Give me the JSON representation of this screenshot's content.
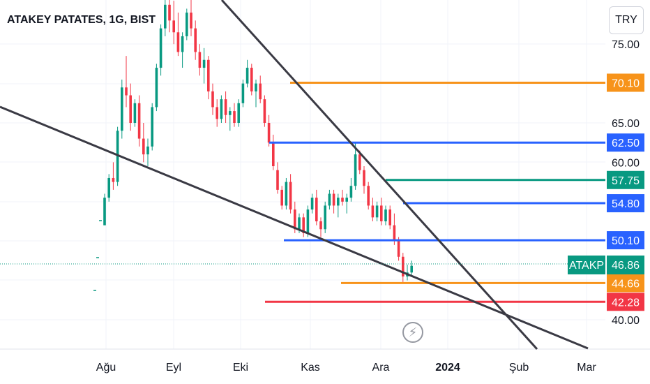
{
  "header": {
    "symbol_title": "ATAKEY PATATES, 1G, BIST",
    "currency": "TRY"
  },
  "icons": {
    "flash": "lightning-bolt-icon"
  },
  "chart_data": {
    "type": "candlestick",
    "symbol": "ATAKP",
    "last_price": "46.86",
    "y_ticks": [
      "75.00",
      "65.00",
      "60.00",
      "40.00"
    ],
    "x_ticks": [
      "Ağu",
      "Eyl",
      "Eki",
      "Kas",
      "Ara",
      "2024",
      "Şub",
      "Mar"
    ],
    "horizontal_levels": [
      {
        "value": 70.1,
        "label": "70.10",
        "color": "#f7931a"
      },
      {
        "value": 62.5,
        "label": "62.50",
        "color": "#2962ff"
      },
      {
        "value": 57.75,
        "label": "57.75",
        "color": "#089981"
      },
      {
        "value": 54.8,
        "label": "54.80",
        "color": "#2962ff"
      },
      {
        "value": 50.1,
        "label": "50.10",
        "color": "#2962ff"
      },
      {
        "value": 44.66,
        "label": "44.66",
        "color": "#f7931a"
      },
      {
        "value": 42.28,
        "label": "42.28",
        "color": "#f23645"
      }
    ],
    "colors": {
      "up": "#089981",
      "down": "#f23645",
      "trendline": "#3a3a44",
      "grid": "#f0f3fa",
      "text": "#131722"
    },
    "candles": [
      [
        52.0,
        56.0,
        52.0,
        55.5
      ],
      [
        55.5,
        58.5,
        55.0,
        58.0
      ],
      [
        58.0,
        60.0,
        56.5,
        57.5
      ],
      [
        57.5,
        64.5,
        57.0,
        64.0
      ],
      [
        64.0,
        70.5,
        63.0,
        69.5
      ],
      [
        69.5,
        73.5,
        67.0,
        68.5
      ],
      [
        68.5,
        70.0,
        64.0,
        65.0
      ],
      [
        65.0,
        68.0,
        64.5,
        67.5
      ],
      [
        67.5,
        68.5,
        62.0,
        63.0
      ],
      [
        63.0,
        65.0,
        60.0,
        61.0
      ],
      [
        61.0,
        63.0,
        59.5,
        62.0
      ],
      [
        62.0,
        67.5,
        61.5,
        67.0
      ],
      [
        67.0,
        72.5,
        66.5,
        72.0
      ],
      [
        72.0,
        77.5,
        71.0,
        77.0
      ],
      [
        77.0,
        82.0,
        76.0,
        80.0
      ],
      [
        80.0,
        83.0,
        76.5,
        78.0
      ],
      [
        78.0,
        80.5,
        75.0,
        76.5
      ],
      [
        76.5,
        79.0,
        73.5,
        74.0
      ],
      [
        74.0,
        76.5,
        72.0,
        76.0
      ],
      [
        76.0,
        79.5,
        75.5,
        79.0
      ],
      [
        79.0,
        81.5,
        76.0,
        77.0
      ],
      [
        77.0,
        78.0,
        73.0,
        74.0
      ],
      [
        74.0,
        75.0,
        71.0,
        72.0
      ],
      [
        72.0,
        74.5,
        70.0,
        73.0
      ],
      [
        73.0,
        73.5,
        68.0,
        69.0
      ],
      [
        69.0,
        70.0,
        66.0,
        67.0
      ],
      [
        67.0,
        68.0,
        64.5,
        65.5
      ],
      [
        65.5,
        68.5,
        65.0,
        68.0
      ],
      [
        68.0,
        69.0,
        65.0,
        66.0
      ],
      [
        66.0,
        67.0,
        64.0,
        66.5
      ],
      [
        66.5,
        67.5,
        64.5,
        65.0
      ],
      [
        65.0,
        68.0,
        64.5,
        67.5
      ],
      [
        67.5,
        70.5,
        67.0,
        70.0
      ],
      [
        70.0,
        73.0,
        69.5,
        72.0
      ],
      [
        72.0,
        72.5,
        68.5,
        69.0
      ],
      [
        69.0,
        70.5,
        67.0,
        70.0
      ],
      [
        70.0,
        71.0,
        67.5,
        68.0
      ],
      [
        68.0,
        68.5,
        64.5,
        65.0
      ],
      [
        65.0,
        66.0,
        62.0,
        62.5
      ],
      [
        62.5,
        63.5,
        59.0,
        59.5
      ],
      [
        59.0,
        60.0,
        56.0,
        56.5
      ],
      [
        56.5,
        57.0,
        54.0,
        54.5
      ],
      [
        54.5,
        58.0,
        54.0,
        57.5
      ],
      [
        57.5,
        58.5,
        53.5,
        54.0
      ],
      [
        54.0,
        55.0,
        51.0,
        51.5
      ],
      [
        51.5,
        53.5,
        51.0,
        53.0
      ],
      [
        53.0,
        53.5,
        50.5,
        51.0
      ],
      [
        51.0,
        54.5,
        50.5,
        54.0
      ],
      [
        54.0,
        56.0,
        53.5,
        55.5
      ],
      [
        55.5,
        56.5,
        52.0,
        52.5
      ],
      [
        52.5,
        53.0,
        50.5,
        51.5
      ],
      [
        51.5,
        55.0,
        51.0,
        54.5
      ],
      [
        54.5,
        56.5,
        54.0,
        56.0
      ],
      [
        56.0,
        56.5,
        53.5,
        54.5
      ],
      [
        54.5,
        56.0,
        53.0,
        55.5
      ],
      [
        55.5,
        56.5,
        54.5,
        55.0
      ],
      [
        55.0,
        56.0,
        53.5,
        55.5
      ],
      [
        55.5,
        58.0,
        55.0,
        57.0
      ],
      [
        57.0,
        62.5,
        56.5,
        61.0
      ],
      [
        61.0,
        61.5,
        58.5,
        59.0
      ],
      [
        59.0,
        59.5,
        56.0,
        57.0
      ],
      [
        57.0,
        57.5,
        54.0,
        54.5
      ],
      [
        54.5,
        55.5,
        52.5,
        53.0
      ],
      [
        53.0,
        55.0,
        52.5,
        54.5
      ],
      [
        54.5,
        55.5,
        52.0,
        52.5
      ],
      [
        52.5,
        54.5,
        52.0,
        54.0
      ],
      [
        54.0,
        54.5,
        51.5,
        52.0
      ],
      [
        52.0,
        53.5,
        49.5,
        50.0
      ],
      [
        50.0,
        50.5,
        47.5,
        48.0
      ],
      [
        48.0,
        48.5,
        44.8,
        45.5
      ],
      [
        45.5,
        47.0,
        45.0,
        46.0
      ],
      [
        46.0,
        47.5,
        45.5,
        46.86
      ]
    ]
  }
}
